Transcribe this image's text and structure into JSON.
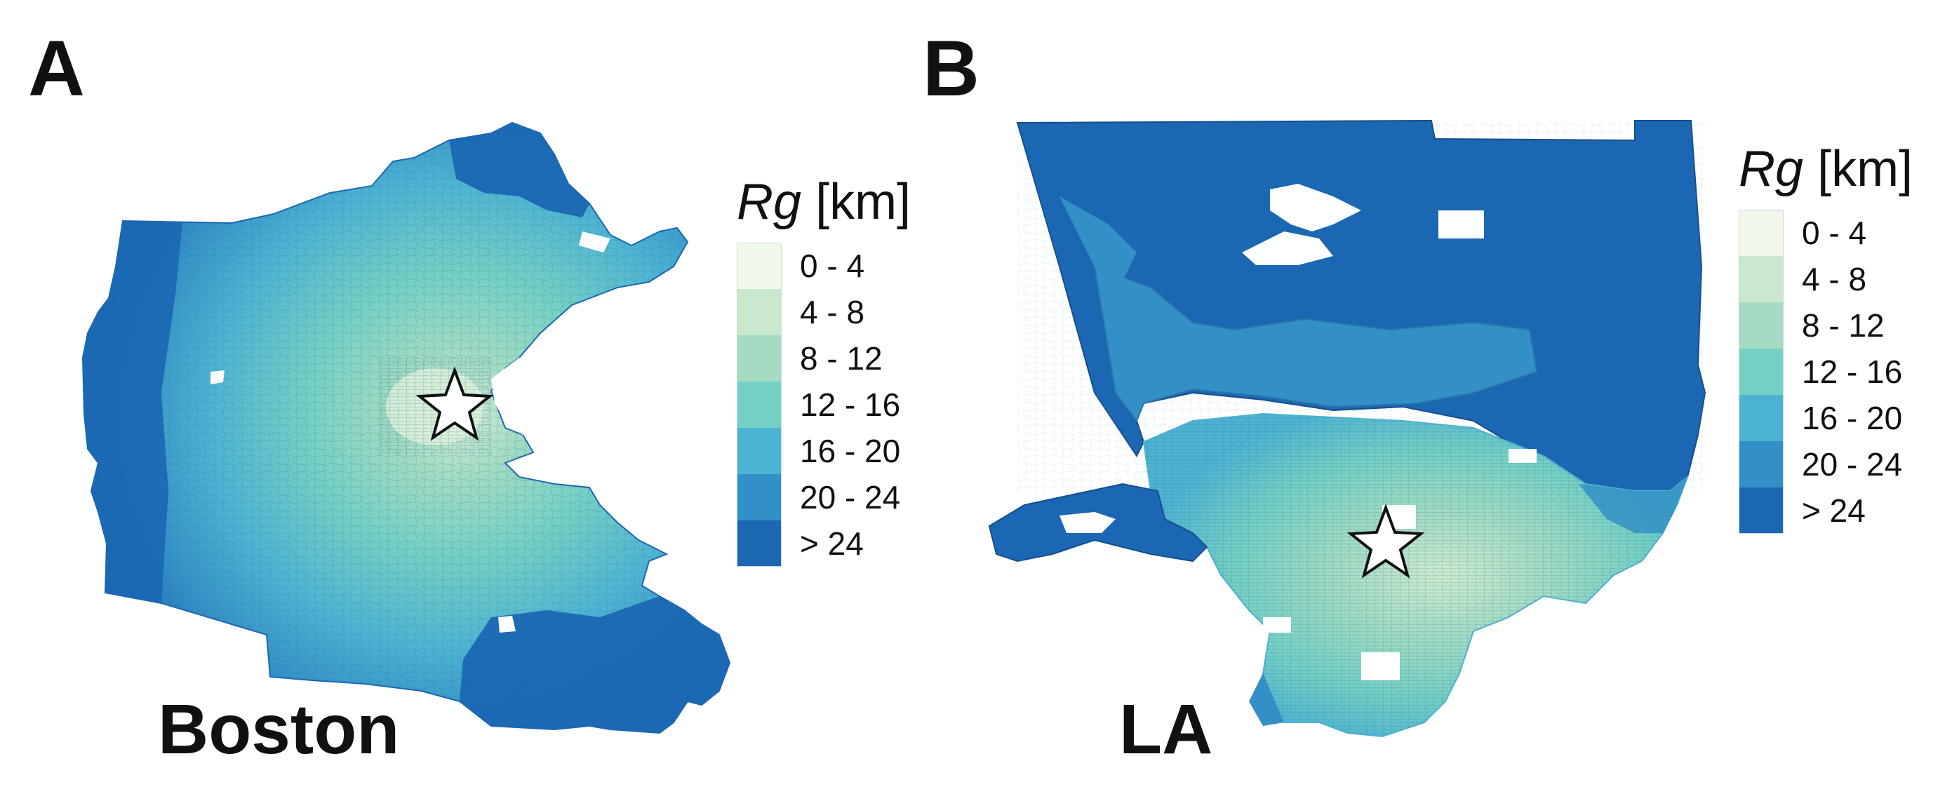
{
  "figure": {
    "panels": [
      {
        "id": "A",
        "label": "A",
        "city": "Boston",
        "legend": {
          "title_var": "Rg",
          "title_unit": "[km]",
          "bins": [
            {
              "label": "0 - 4",
              "color": "#f1f8ec"
            },
            {
              "label": "4 - 8",
              "color": "#c9e8cd"
            },
            {
              "label": "8 - 12",
              "color": "#a3dcc3"
            },
            {
              "label": "12 - 16",
              "color": "#74d0c4"
            },
            {
              "label": "16 - 20",
              "color": "#4db3d3"
            },
            {
              "label": "20 - 24",
              "color": "#3390c6"
            },
            {
              "label": "> 24",
              "color": "#1b67b3"
            }
          ]
        },
        "marker": "star-icon"
      },
      {
        "id": "B",
        "label": "B",
        "city": "LA",
        "legend": {
          "title_var": "Rg",
          "title_unit": "[km]",
          "bins": [
            {
              "label": "0 - 4",
              "color": "#f1f8ec"
            },
            {
              "label": "4 - 8",
              "color": "#c9e8cd"
            },
            {
              "label": "8 - 12",
              "color": "#a3dcc3"
            },
            {
              "label": "12 - 16",
              "color": "#74d0c4"
            },
            {
              "label": "16 - 20",
              "color": "#4db3d3"
            },
            {
              "label": "20 - 24",
              "color": "#3390c6"
            },
            {
              "label": "> 24",
              "color": "#1b67b3"
            }
          ]
        },
        "marker": "star-icon"
      }
    ]
  }
}
